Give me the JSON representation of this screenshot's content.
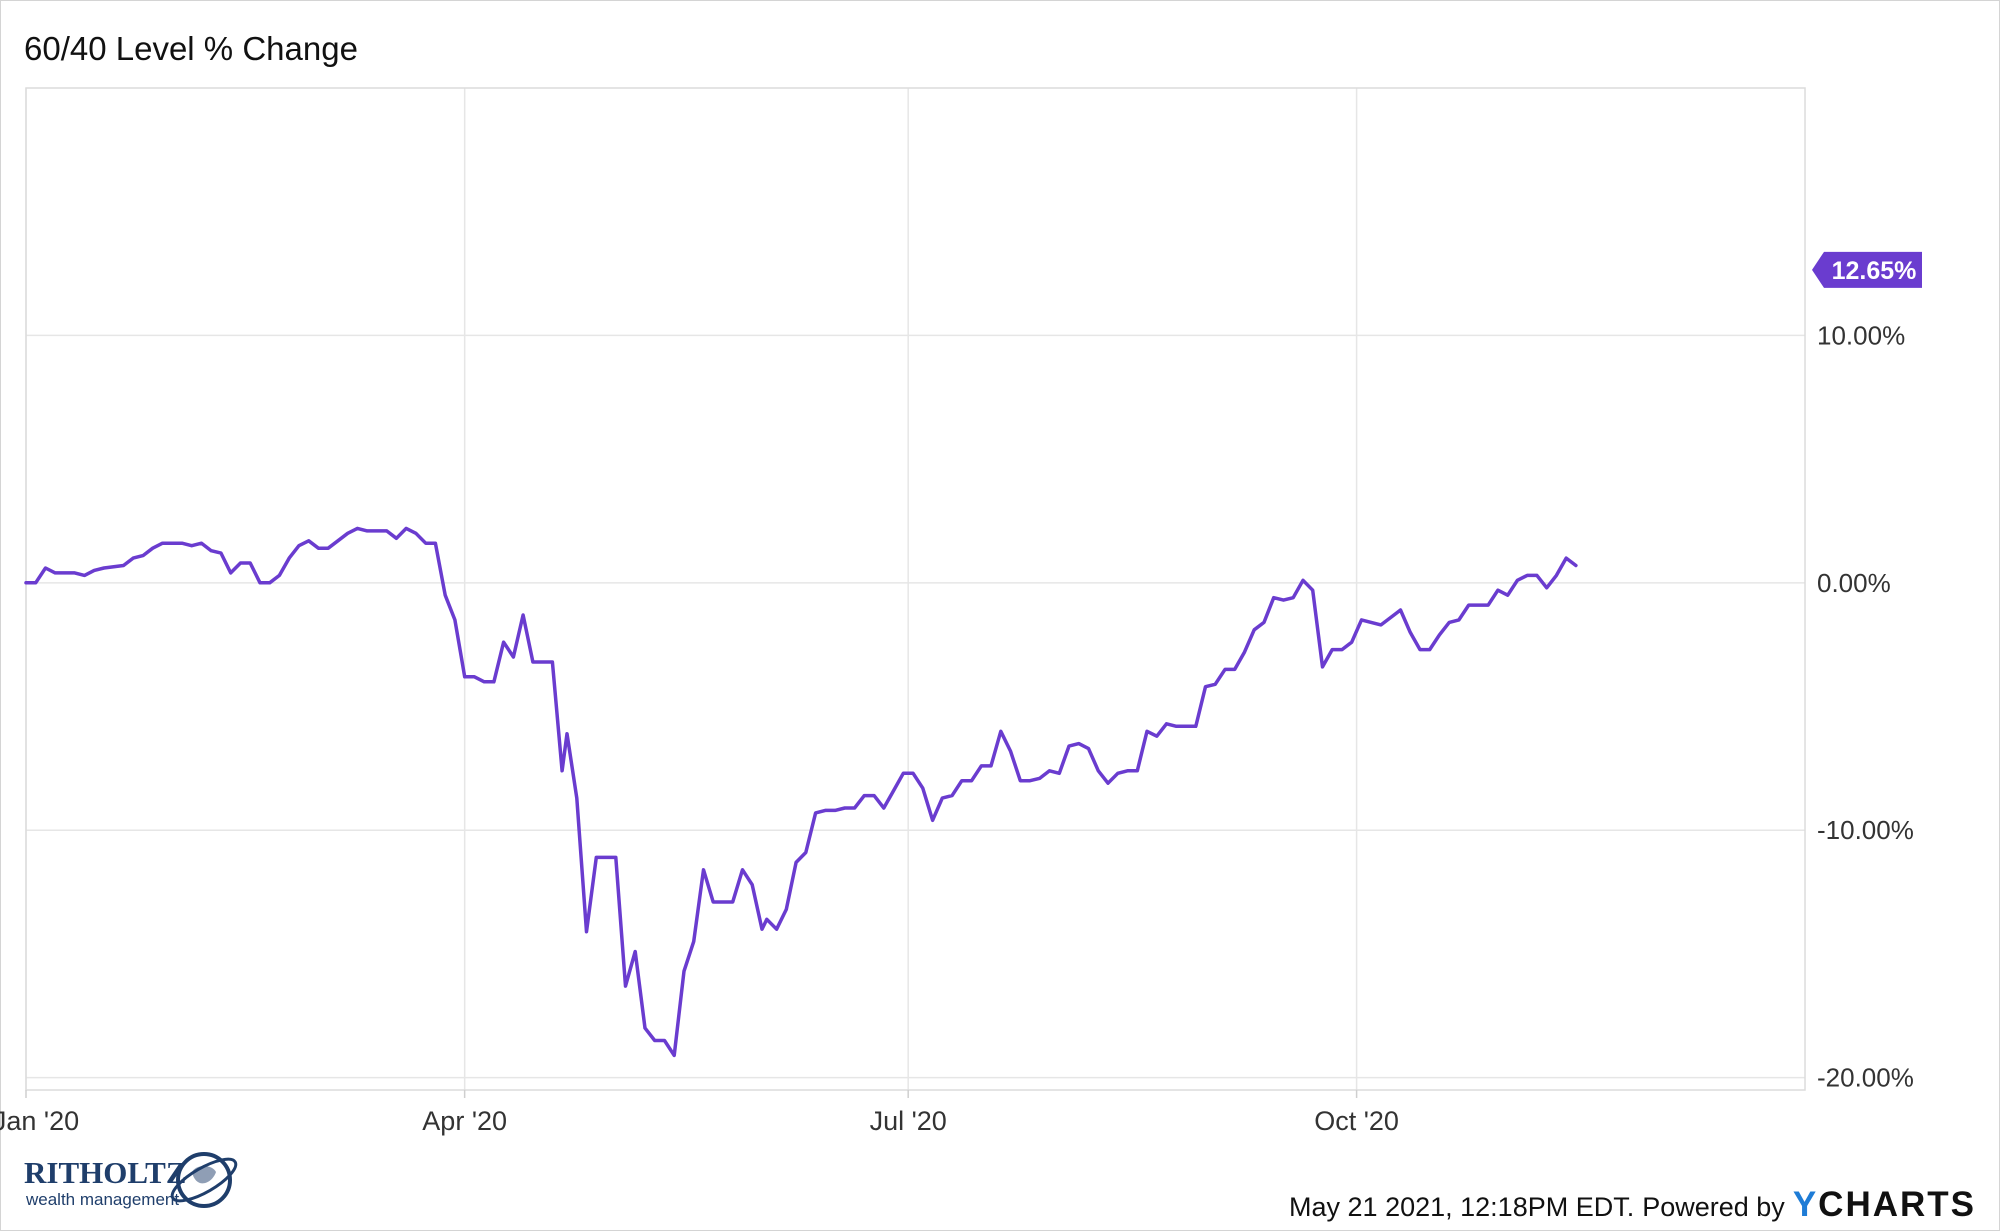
{
  "chart_data": {
    "type": "line",
    "title": "60/40 Level % Change",
    "x_tick_labels": [
      "Jan '20",
      "Apr '20",
      "Jul '20",
      "Oct '20"
    ],
    "y_tick_labels": [
      "10.00%",
      "0.00%",
      "-10.00%",
      "-20.00%"
    ],
    "y_ticks": [
      10,
      0,
      -10,
      -20
    ],
    "ylim": [
      -20.5,
      20
    ],
    "x_range_days": [
      0,
      365
    ],
    "x_ticks_days": [
      0,
      90,
      181,
      273
    ],
    "grid": true,
    "series": [
      {
        "color": "#6a3ccf",
        "last_value_label": "12.65%",
        "points": [
          [
            0,
            0
          ],
          [
            2,
            0
          ],
          [
            4,
            0.6
          ],
          [
            6,
            0.4
          ],
          [
            10,
            0.4
          ],
          [
            12,
            0.3
          ],
          [
            14,
            0.5
          ],
          [
            16,
            0.6
          ],
          [
            20,
            0.7
          ],
          [
            22,
            1.0
          ],
          [
            24,
            1.1
          ],
          [
            26,
            1.4
          ],
          [
            28,
            1.6
          ],
          [
            32,
            1.6
          ],
          [
            34,
            1.5
          ],
          [
            36,
            1.6
          ],
          [
            38,
            1.3
          ],
          [
            40,
            1.2
          ],
          [
            42,
            0.4
          ],
          [
            44,
            0.8
          ],
          [
            46,
            0.8
          ],
          [
            48,
            0
          ],
          [
            50,
            0
          ],
          [
            52,
            0.3
          ],
          [
            54,
            1.0
          ],
          [
            56,
            1.5
          ],
          [
            58,
            1.7
          ],
          [
            60,
            1.4
          ],
          [
            62,
            1.4
          ],
          [
            64,
            1.7
          ],
          [
            66,
            2.0
          ],
          [
            68,
            2.2
          ],
          [
            70,
            2.1
          ],
          [
            72,
            2.1
          ],
          [
            74,
            2.1
          ],
          [
            76,
            1.8
          ],
          [
            78,
            2.2
          ],
          [
            80,
            2.0
          ],
          [
            82,
            1.6
          ],
          [
            84,
            1.6
          ],
          [
            86,
            -0.5
          ],
          [
            88,
            -1.5
          ],
          [
            90,
            -3.8
          ],
          [
            92,
            -3.8
          ],
          [
            94,
            -4.0
          ],
          [
            96,
            -4.0
          ],
          [
            98,
            -2.4
          ],
          [
            100,
            -3.0
          ],
          [
            102,
            -1.3
          ],
          [
            104,
            -3.2
          ],
          [
            106,
            -3.2
          ],
          [
            108,
            -3.2
          ],
          [
            110,
            -7.6
          ],
          [
            111,
            -6.1
          ],
          [
            113,
            -8.7
          ],
          [
            115,
            -14.1
          ],
          [
            117,
            -11.1
          ],
          [
            119,
            -11.1
          ],
          [
            121,
            -11.1
          ],
          [
            123,
            -16.3
          ],
          [
            125,
            -14.9
          ],
          [
            127,
            -18.0
          ],
          [
            129,
            -18.5
          ],
          [
            131,
            -18.5
          ],
          [
            133,
            -19.1
          ],
          [
            135,
            -15.7
          ],
          [
            137,
            -14.5
          ],
          [
            139,
            -11.6
          ],
          [
            141,
            -12.9
          ],
          [
            143,
            -12.9
          ],
          [
            145,
            -12.9
          ],
          [
            147,
            -11.6
          ],
          [
            149,
            -12.2
          ],
          [
            151,
            -14.0
          ],
          [
            152,
            -13.6
          ],
          [
            154,
            -14.0
          ],
          [
            156,
            -13.2
          ],
          [
            158,
            -11.3
          ],
          [
            160,
            -10.9
          ],
          [
            162,
            -9.3
          ],
          [
            164,
            -9.2
          ],
          [
            166,
            -9.2
          ],
          [
            168,
            -9.1
          ],
          [
            170,
            -9.1
          ],
          [
            172,
            -8.6
          ],
          [
            174,
            -8.6
          ],
          [
            176,
            -9.1
          ],
          [
            178,
            -8.4
          ],
          [
            180,
            -7.7
          ],
          [
            182,
            -7.7
          ],
          [
            184,
            -8.3
          ],
          [
            186,
            -9.6
          ],
          [
            188,
            -8.7
          ],
          [
            190,
            -8.6
          ],
          [
            192,
            -8.0
          ],
          [
            194,
            -8.0
          ],
          [
            196,
            -7.4
          ],
          [
            198,
            -7.4
          ],
          [
            200,
            -6.0
          ],
          [
            202,
            -6.8
          ],
          [
            204,
            -8.0
          ],
          [
            206,
            -8.0
          ],
          [
            208,
            -7.9
          ],
          [
            210,
            -7.6
          ],
          [
            212,
            -7.7
          ],
          [
            214,
            -6.6
          ],
          [
            216,
            -6.5
          ],
          [
            218,
            -6.7
          ],
          [
            220,
            -7.6
          ],
          [
            222,
            -8.1
          ],
          [
            224,
            -7.7
          ],
          [
            226,
            -7.6
          ],
          [
            228,
            -7.6
          ],
          [
            230,
            -6.0
          ],
          [
            232,
            -6.2
          ],
          [
            234,
            -5.7
          ],
          [
            236,
            -5.8
          ],
          [
            238,
            -5.8
          ],
          [
            240,
            -5.8
          ],
          [
            242,
            -4.2
          ],
          [
            244,
            -4.1
          ],
          [
            246,
            -3.5
          ],
          [
            248,
            -3.5
          ],
          [
            250,
            -2.8
          ],
          [
            252,
            -1.9
          ],
          [
            254,
            -1.6
          ],
          [
            256,
            -0.6
          ],
          [
            258,
            -0.7
          ],
          [
            260,
            -0.6
          ],
          [
            262,
            0.1
          ],
          [
            264,
            -0.3
          ],
          [
            266,
            -3.4
          ],
          [
            268,
            -2.7
          ],
          [
            270,
            -2.7
          ],
          [
            272,
            -2.4
          ],
          [
            274,
            -1.5
          ],
          [
            276,
            -1.6
          ],
          [
            278,
            -1.7
          ],
          [
            280,
            -1.4
          ],
          [
            282,
            -1.1
          ],
          [
            284,
            -2.0
          ],
          [
            286,
            -2.7
          ],
          [
            288,
            -2.7
          ],
          [
            290,
            -2.1
          ],
          [
            292,
            -1.6
          ],
          [
            294,
            -1.5
          ],
          [
            296,
            -0.9
          ],
          [
            298,
            -0.9
          ],
          [
            300,
            -0.9
          ],
          [
            302,
            -0.3
          ],
          [
            304,
            -0.5
          ],
          [
            306,
            0.1
          ],
          [
            308,
            0.3
          ],
          [
            310,
            0.3
          ],
          [
            312,
            -0.2
          ],
          [
            314,
            0.3
          ],
          [
            316,
            1.0
          ],
          [
            318,
            0.7
          ]
        ]
      }
    ]
  },
  "footer": {
    "timestamp": "May 21 2021, 12:18PM EDT.",
    "powered_by": "Powered by",
    "brand_y": "Y",
    "brand_rest": "CHARTS"
  },
  "logo": {
    "name": "RITHOLTZ",
    "tagline": "wealth management"
  }
}
